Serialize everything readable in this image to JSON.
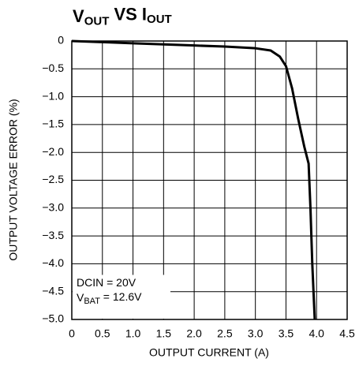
{
  "chart_data": {
    "type": "line",
    "title": [
      {
        "text": "V"
      },
      {
        "text": "OUT",
        "sub": true
      },
      {
        "text": " VS I"
      },
      {
        "text": "OUT",
        "sub": true
      }
    ],
    "xlabel": "OUTPUT CURRENT (A)",
    "ylabel": "OUTPUT VOLTAGE ERROR (%)",
    "x": [
      0,
      0.5,
      1.0,
      1.5,
      2.0,
      2.5,
      3.0,
      3.25,
      3.4,
      3.5,
      3.6,
      3.7,
      3.8,
      3.87,
      3.9,
      3.93,
      3.97
    ],
    "series": [
      {
        "color": "#000000",
        "values": [
          0,
          -0.02,
          -0.04,
          -0.06,
          -0.08,
          -0.1,
          -0.13,
          -0.17,
          -0.28,
          -0.45,
          -0.85,
          -1.4,
          -1.9,
          -2.2,
          -3.0,
          -4.0,
          -5.0
        ]
      }
    ],
    "xlim": [
      0,
      4.5
    ],
    "ylim": [
      -5,
      0
    ],
    "xticks": [
      0,
      0.5,
      {
        "value": 1,
        "label": "1.0"
      },
      1.5,
      {
        "value": 2,
        "label": "2.0"
      },
      2.5,
      {
        "value": 3,
        "label": "3.0"
      },
      3.5,
      {
        "value": 4,
        "label": "4.0"
      },
      4.5
    ],
    "yticks": [
      0,
      {
        "value": -0.5,
        "label": "−0.5"
      },
      {
        "value": -1,
        "label": "−1.0"
      },
      {
        "value": -1.5,
        "label": "−1.5"
      },
      {
        "value": -2,
        "label": "−2.0"
      },
      {
        "value": -2.5,
        "label": "−2.5"
      },
      {
        "value": -3,
        "label": "−3.0"
      },
      {
        "value": -3.5,
        "label": "−3.5"
      },
      {
        "value": -4,
        "label": "−4.0"
      },
      {
        "value": -4.5,
        "label": "−4.5"
      },
      {
        "value": -5,
        "label": "−5.0"
      }
    ],
    "grid": true,
    "annotations": [
      [
        {
          "text": "DCIN = 20V"
        }
      ],
      [
        {
          "text": "V"
        },
        {
          "text": "BAT",
          "sub": true
        },
        {
          "text": " = 12.6V"
        }
      ]
    ]
  }
}
